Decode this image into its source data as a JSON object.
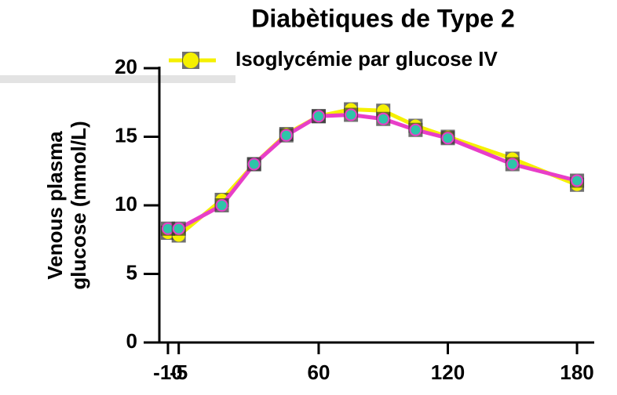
{
  "chart_data": {
    "type": "line",
    "title": "Diabètiques de Type 2",
    "ylabel": [
      "Venous plasma",
      "glucose (mmol/L)"
    ],
    "x": [
      -10,
      -5,
      15,
      30,
      45,
      60,
      75,
      90,
      105,
      120,
      150,
      180
    ],
    "series": [
      {
        "name": "Isoglycémie par glucose IV",
        "color": "#f5f000",
        "marker_color": "#f5f000",
        "values": [
          8.0,
          7.8,
          10.4,
          13.0,
          15.2,
          16.5,
          17.0,
          16.9,
          15.8,
          15.0,
          13.4,
          11.5
        ]
      },
      {
        "color": "#e83ec8",
        "marker_color": "#2ec4a8",
        "values": [
          8.3,
          8.3,
          10.0,
          13.0,
          15.1,
          16.5,
          16.6,
          16.3,
          15.5,
          14.9,
          13.0,
          11.8
        ]
      }
    ],
    "xlim": [
      -14,
      188
    ],
    "xticks": [
      -10,
      -5,
      60,
      120,
      180
    ],
    "ylim": [
      0,
      20
    ],
    "yticks": [
      0,
      5,
      10,
      15,
      20
    ],
    "legend": "top"
  }
}
